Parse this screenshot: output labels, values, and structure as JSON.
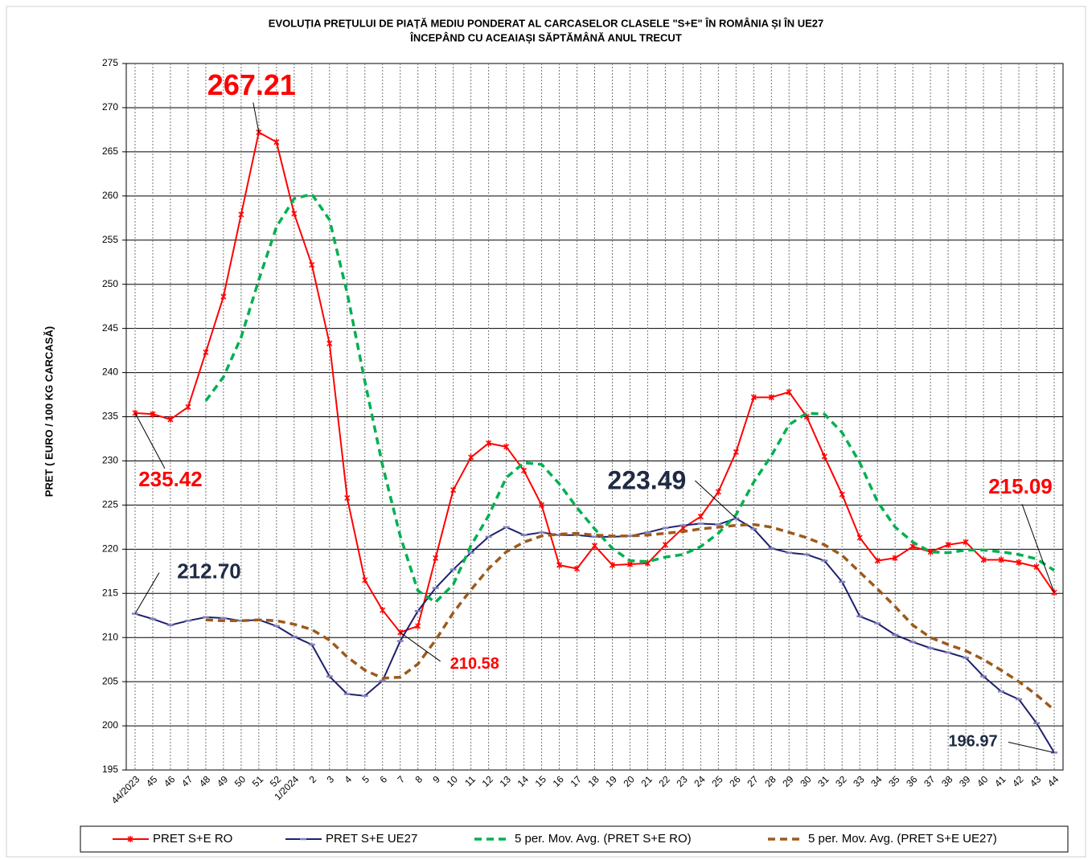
{
  "chart_data": {
    "type": "line",
    "title": "EVOLUȚIA  PREȚULUI DE PIAȚĂ MEDIU PONDERAT AL CARCASELOR  CLASELE \"S+E\" ÎN ROMÂNIA  ȘI ÎN UE27",
    "subtitle": "ÎNCEPÂND  CU ACEAIAȘI  SĂPTĂMÂNĂ  ANUL TRECUT",
    "y_label": "PRET ( EURO / 100 KG CARCASĂ)",
    "grid": true,
    "categories": [
      "44/2023",
      "45",
      "46",
      "47",
      "48",
      "49",
      "50",
      "51",
      "52",
      "1/2024",
      "2",
      "3",
      "4",
      "5",
      "6",
      "7",
      "8",
      "9",
      "10",
      "11",
      "12",
      "13",
      "14",
      "15",
      "16",
      "17",
      "18",
      "19",
      "20",
      "21",
      "22",
      "23",
      "24",
      "25",
      "26",
      "27",
      "28",
      "29",
      "30",
      "31",
      "32",
      "33",
      "34",
      "35",
      "36",
      "37",
      "38",
      "39",
      "40",
      "41",
      "42",
      "43",
      "44"
    ],
    "ylim": [
      195,
      275
    ],
    "yticks": [
      195,
      200,
      205,
      210,
      215,
      220,
      225,
      230,
      235,
      240,
      245,
      250,
      255,
      260,
      265,
      270,
      275
    ],
    "series": [
      {
        "name": "PRET S+E RO",
        "color": "#ff0000",
        "marker": "x",
        "dash": false,
        "values": [
          235.42,
          235.3,
          234.7,
          236.1,
          242.3,
          248.6,
          257.9,
          267.21,
          266.1,
          258.0,
          252.2,
          243.3,
          225.8,
          216.5,
          213.1,
          210.58,
          211.3,
          219.0,
          226.7,
          230.4,
          232.0,
          231.6,
          228.9,
          225.0,
          218.2,
          217.8,
          220.4,
          218.2,
          218.3,
          218.4,
          220.5,
          222.4,
          223.7,
          226.5,
          231.0,
          237.2,
          237.2,
          237.8,
          235.0,
          230.5,
          226.2,
          221.3,
          218.7,
          219.0,
          220.3,
          219.7,
          220.5,
          220.8,
          218.8,
          218.8,
          218.5,
          218.0,
          215.09
        ],
        "value_labels": [
          "235.42",
          null,
          null,
          null,
          null,
          null,
          null,
          "267.21",
          null,
          null,
          null,
          null,
          null,
          null,
          null,
          "210.58",
          null,
          null,
          null,
          null,
          null,
          null,
          null,
          null,
          null,
          null,
          null,
          null,
          null,
          null,
          null,
          null,
          null,
          null,
          null,
          null,
          null,
          null,
          null,
          null,
          null,
          null,
          null,
          null,
          null,
          null,
          null,
          null,
          null,
          null,
          null,
          null,
          "215.09"
        ]
      },
      {
        "name": "PRET S+E UE27",
        "color": "#1f1f6e",
        "marker": "dash",
        "dash": false,
        "values": [
          212.7,
          212.1,
          211.4,
          211.9,
          212.3,
          212.2,
          211.9,
          212.0,
          211.3,
          210.1,
          209.2,
          205.6,
          203.6,
          203.4,
          205.1,
          209.6,
          213.0,
          215.6,
          217.7,
          219.6,
          221.4,
          222.5,
          221.6,
          221.9,
          221.6,
          221.6,
          221.4,
          221.4,
          221.5,
          221.9,
          222.4,
          222.7,
          222.9,
          222.8,
          223.49,
          222.3,
          220.1,
          219.6,
          219.4,
          218.7,
          216.3,
          212.4,
          211.6,
          210.3,
          209.5,
          208.8,
          208.3,
          207.7,
          205.6,
          203.9,
          203.0,
          200.3,
          196.97
        ],
        "value_labels": [
          "212.70",
          null,
          null,
          null,
          null,
          null,
          null,
          null,
          null,
          null,
          null,
          null,
          null,
          null,
          null,
          null,
          null,
          null,
          null,
          null,
          null,
          null,
          null,
          null,
          null,
          null,
          null,
          null,
          null,
          null,
          null,
          null,
          null,
          null,
          "223.49",
          null,
          null,
          null,
          null,
          null,
          null,
          null,
          null,
          null,
          null,
          null,
          null,
          null,
          null,
          null,
          null,
          null,
          "196.97"
        ]
      },
      {
        "name": "5 per. Mov. Avg. (PRET S+E RO)",
        "color": "#00b050",
        "marker": "none",
        "dash": true,
        "values": [
          null,
          null,
          null,
          null,
          236.8,
          239.5,
          244.0,
          250.5,
          256.5,
          259.7,
          260.2,
          257.3,
          249.0,
          239.0,
          229.5,
          221.5,
          215.3,
          214.0,
          216.0,
          220.4,
          223.8,
          228.1,
          229.8,
          229.6,
          227.4,
          224.7,
          222.3,
          220.1,
          218.7,
          218.6,
          219.1,
          219.4,
          220.3,
          221.8,
          223.9,
          227.6,
          230.6,
          234.1,
          235.4,
          235.3,
          233.2,
          229.8,
          225.4,
          222.5,
          220.8,
          219.7,
          219.6,
          219.9,
          219.9,
          219.7,
          219.4,
          218.9,
          217.6
        ]
      },
      {
        "name": "5 per. Mov. Avg. (PRET S+E UE27)",
        "color": "#9c5a1c",
        "marker": "none",
        "dash": true,
        "values": [
          null,
          null,
          null,
          null,
          212.0,
          211.9,
          211.9,
          212.0,
          211.9,
          211.5,
          210.9,
          209.7,
          207.8,
          206.3,
          205.4,
          205.5,
          207.0,
          209.7,
          212.8,
          215.4,
          217.8,
          219.7,
          220.8,
          221.5,
          221.7,
          221.8,
          221.6,
          221.5,
          221.5,
          221.6,
          221.8,
          222.0,
          222.3,
          222.5,
          222.7,
          222.8,
          222.5,
          221.9,
          221.3,
          220.5,
          219.3,
          217.4,
          215.5,
          213.5,
          211.4,
          210.0,
          209.2,
          208.5,
          207.5,
          206.3,
          205.0,
          203.5,
          201.8
        ]
      }
    ]
  }
}
